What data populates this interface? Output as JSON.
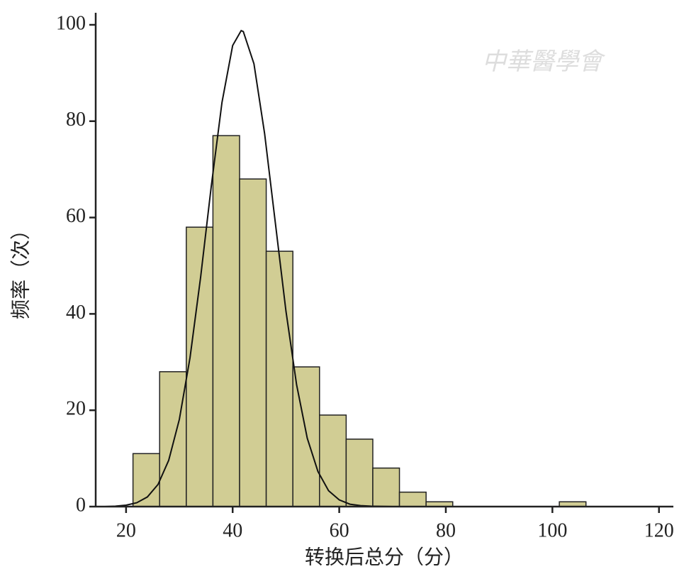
{
  "chart_data": {
    "type": "histogram",
    "watermark": "中華醫學會",
    "xlabel": "转换后总分（分）",
    "ylabel": "频率（次）",
    "bins": [
      21.3,
      26.3,
      31.3,
      36.3,
      41.3,
      46.3,
      51.3,
      56.3,
      61.3,
      66.3,
      71.3,
      76.3,
      81.3,
      86.3,
      91.3,
      96.3,
      101.3,
      106.3
    ],
    "values": [
      11,
      28,
      58,
      77,
      68,
      53,
      29,
      19,
      14,
      8,
      3,
      1,
      0,
      0,
      0,
      0,
      1
    ],
    "color": "#d1cd94",
    "curve": {
      "color": "#111111",
      "x": [
        14,
        16,
        18,
        20,
        22,
        24,
        26,
        28,
        30,
        32,
        34,
        36,
        38,
        40,
        41.6,
        42,
        44,
        46,
        48,
        50,
        52,
        54,
        56,
        58,
        60,
        62,
        64,
        66,
        70,
        122
      ],
      "values": [
        0.0,
        0.0,
        0.1,
        0.3,
        0.8,
        2.0,
        4.6,
        9.6,
        18.1,
        30.9,
        47.7,
        66.6,
        83.9,
        95.7,
        98.8,
        98.6,
        91.9,
        77.4,
        59.0,
        40.6,
        25.3,
        14.2,
        7.3,
        3.3,
        1.4,
        0.5,
        0.2,
        0.1,
        0.0,
        0.0
      ]
    },
    "xlim": [
      14.3,
      122.7
    ],
    "xticks": [
      20,
      40,
      60,
      80,
      100,
      120
    ],
    "ylim": [
      0,
      102.5
    ],
    "yticks": [
      0,
      20,
      40,
      60,
      80,
      100
    ],
    "grid": false
  }
}
